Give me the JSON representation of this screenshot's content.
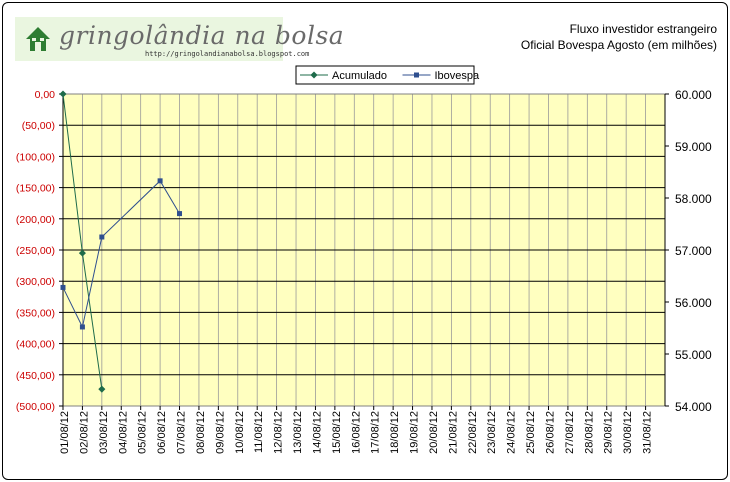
{
  "logo": {
    "brand": "gringolândia na bolsa",
    "url": "http://gringolandianabolsa.blogspot.com"
  },
  "chart_data": {
    "type": "line",
    "title": "Fluxo investidor  estrangeiro",
    "subtitle": "Oficial Bovespa Agosto (em milhões)",
    "legend_position": "top-center",
    "grid": true,
    "plot_background": "#ffffc0",
    "categories": [
      "01/08/12",
      "02/08/12",
      "03/08/12",
      "04/08/12",
      "05/08/12",
      "06/08/12",
      "07/08/12",
      "08/08/12",
      "09/08/12",
      "10/08/12",
      "11/08/12",
      "12/08/12",
      "13/08/12",
      "14/08/12",
      "15/08/12",
      "16/08/12",
      "17/08/12",
      "18/08/12",
      "19/08/12",
      "20/08/12",
      "21/08/12",
      "22/08/12",
      "23/08/12",
      "24/08/12",
      "25/08/12",
      "26/08/12",
      "27/08/12",
      "28/08/12",
      "29/08/12",
      "30/08/12",
      "31/08/12"
    ],
    "y_left": {
      "ylim": [
        -500,
        0
      ],
      "ticks": [
        0,
        -50,
        -100,
        -150,
        -200,
        -250,
        -300,
        -350,
        -400,
        -450,
        -500
      ],
      "tick_labels": [
        "0,00",
        "(50,00)",
        "(100,00)",
        "(150,00)",
        "(200,00)",
        "(250,00)",
        "(300,00)",
        "(350,00)",
        "(400,00)",
        "(450,00)",
        "(500,00)"
      ],
      "tick_color": "#cc0000"
    },
    "y_right": {
      "ylim": [
        54000,
        60000
      ],
      "ticks": [
        60000,
        59000,
        58000,
        57000,
        56000,
        55000,
        54000
      ],
      "tick_labels": [
        "60.000",
        "59.000",
        "58.000",
        "57.000",
        "56.000",
        "55.000",
        "54.000"
      ]
    },
    "series": [
      {
        "name": "Acumulado",
        "axis": "left",
        "color": "#1e6b4a",
        "marker": "diamond",
        "points": [
          {
            "x": "01/08/12",
            "y": 0
          },
          {
            "x": "02/08/12",
            "y": -255
          },
          {
            "x": "03/08/12",
            "y": -473
          }
        ]
      },
      {
        "name": "Ibovespa",
        "axis": "right",
        "color": "#2f4f8f",
        "marker": "square",
        "points": [
          {
            "x": "01/08/12",
            "y": 56280
          },
          {
            "x": "02/08/12",
            "y": 55520
          },
          {
            "x": "03/08/12",
            "y": 57250
          },
          {
            "x": "06/08/12",
            "y": 58330
          },
          {
            "x": "07/08/12",
            "y": 57700
          }
        ]
      }
    ]
  }
}
